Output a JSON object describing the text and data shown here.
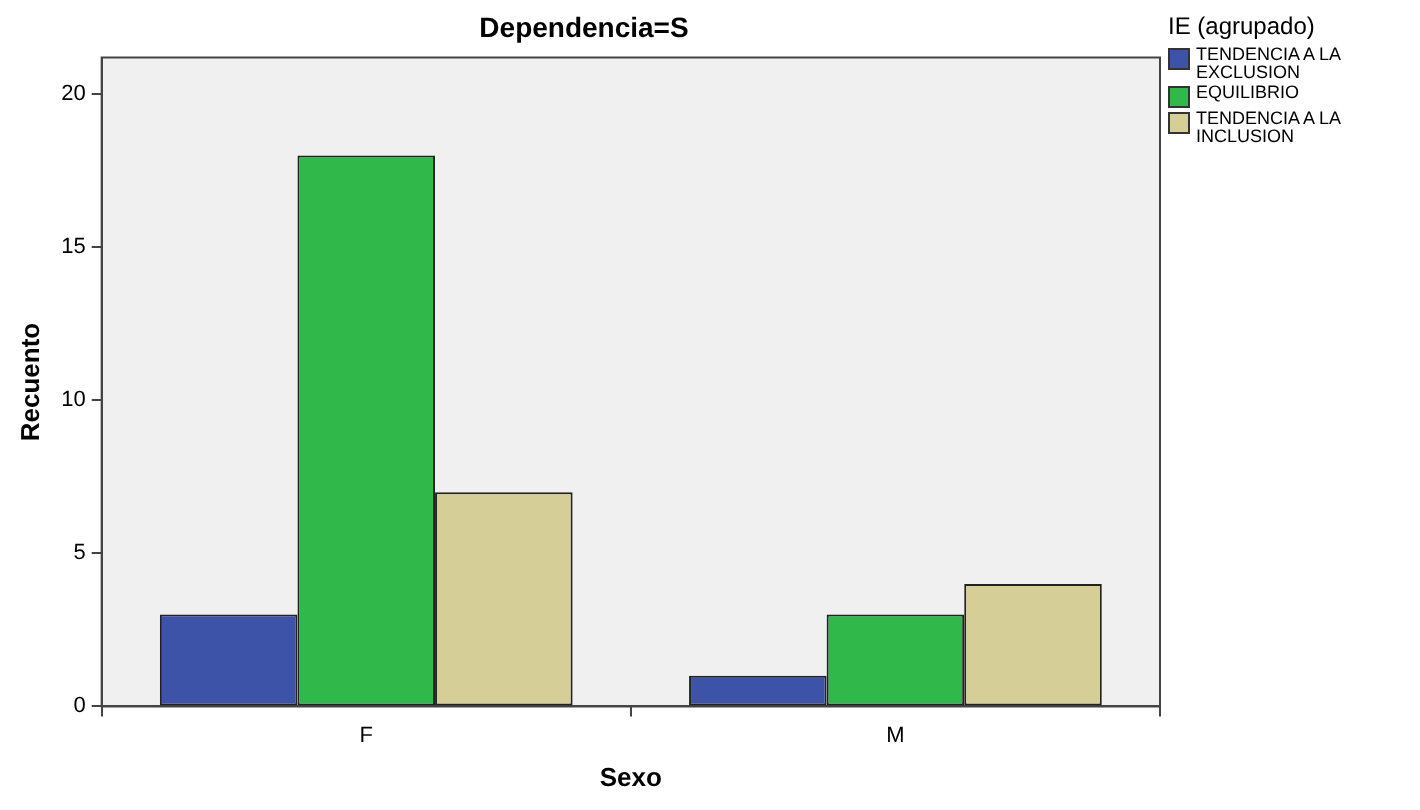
{
  "chart_data": {
    "type": "bar",
    "title": "Dependencia=S",
    "xlabel": "Sexo",
    "ylabel": "Recuento",
    "legend_title": "IE (agrupado)",
    "categories": [
      "F",
      "M"
    ],
    "series": [
      {
        "name": "TENDENCIA A LA EXCLUSION",
        "color": "#3d53a8",
        "values": [
          3,
          1
        ]
      },
      {
        "name": "EQUILIBRIO",
        "color": "#30b94a",
        "values": [
          18,
          3
        ]
      },
      {
        "name": "TENDENCIA A LA INCLUSION",
        "color": "#d5cf97",
        "values": [
          7,
          4
        ]
      }
    ],
    "ylim": [
      0,
      21.2
    ],
    "yticks": [
      0,
      5,
      10,
      15,
      20
    ],
    "grid": false,
    "legend": "top right"
  }
}
